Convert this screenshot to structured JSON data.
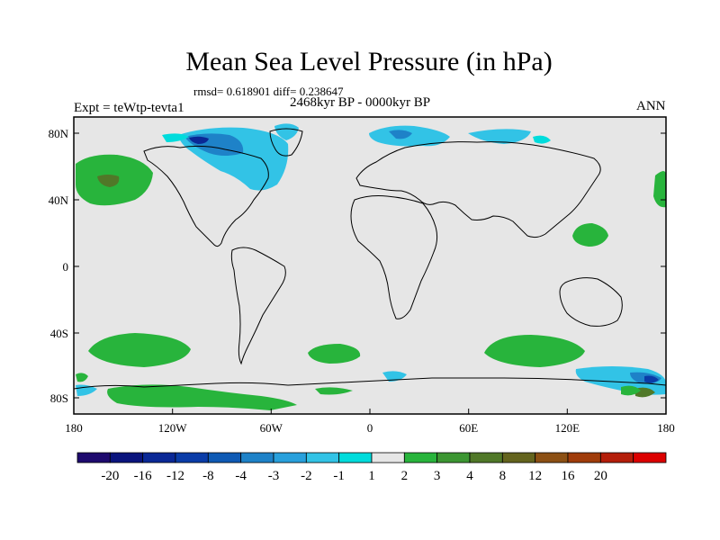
{
  "title": "Mean Sea Level Pressure (in hPa)",
  "stats_line": "rmsd= 0.618901 diff= 0.238647",
  "period": "2468kyr BP - 0000kyr BP",
  "experiment": "Expt = teWtp-tevta1",
  "season": "ANN",
  "lat_ticks": [
    "80N",
    "40N",
    "0",
    "40S",
    "80S"
  ],
  "lon_ticks": [
    "180",
    "120W",
    "60W",
    "0",
    "60E",
    "120E",
    "180"
  ],
  "colorbar_labels": [
    "-20",
    "-16",
    "-12",
    "-8",
    "-4",
    "-3",
    "-2",
    "-1",
    "1",
    "2",
    "3",
    "4",
    "8",
    "12",
    "16",
    "20"
  ],
  "colors": {
    "ocean": "#e6e6e6",
    "palette": [
      "#1e0a6e",
      "#0a147d",
      "#0a2896",
      "#0a3ca8",
      "#0f5ab4",
      "#1e82c8",
      "#28a0dc",
      "#32c3e6",
      "#00dcdc",
      "#e6e6e6",
      "#28b43c",
      "#3c9632",
      "#507828",
      "#64641e",
      "#8c5014",
      "#a03c0a",
      "#b41e0a",
      "#dc0000"
    ]
  }
}
